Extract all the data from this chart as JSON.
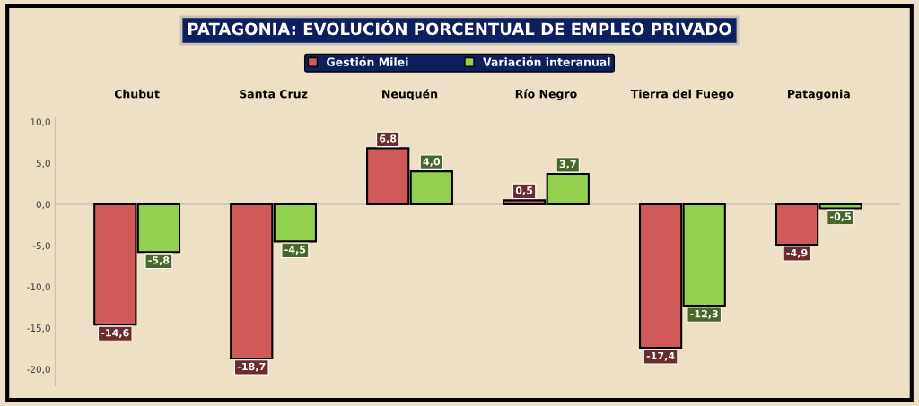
{
  "chart_data": {
    "type": "bar",
    "title": "PATAGONIA: EVOLUCIÓN PORCENTUAL DE EMPLEO PRIVADO",
    "categories": [
      "Chubut",
      "Santa Cruz",
      "Neuquén",
      "Río Negro",
      "Tierra del Fuego",
      "Patagonia"
    ],
    "series": [
      {
        "name": "Gestión Milei",
        "color": "#d05a58",
        "values": [
          -14.6,
          -18.7,
          6.8,
          0.5,
          -17.4,
          -4.9
        ],
        "value_labels": [
          "-14,6",
          "-18,7",
          "6,8",
          "0,5",
          "-17,4",
          "-4,9"
        ]
      },
      {
        "name": "Variación interanual",
        "color": "#92d050",
        "values": [
          -5.8,
          -4.5,
          4.0,
          3.7,
          -12.3,
          -0.5
        ],
        "value_labels": [
          "-5,8",
          "-4,5",
          "4,0",
          "3,7",
          "-12,3",
          "-0,5"
        ]
      }
    ],
    "ylim": [
      -22,
      10.5
    ],
    "yticks": [
      {
        "value": 10,
        "label": "10,0"
      },
      {
        "value": 5,
        "label": "5,0"
      },
      {
        "value": 0,
        "label": "0,0"
      },
      {
        "value": -5,
        "label": "-5,0"
      },
      {
        "value": -10,
        "label": "-10,0"
      },
      {
        "value": -15,
        "label": "-15,0"
      },
      {
        "value": -20,
        "label": "-20,0"
      }
    ],
    "ref_lines": [
      {
        "axis": "y",
        "value": 0,
        "color": "#c8c0b0"
      }
    ],
    "legend": "top",
    "grid": false
  }
}
